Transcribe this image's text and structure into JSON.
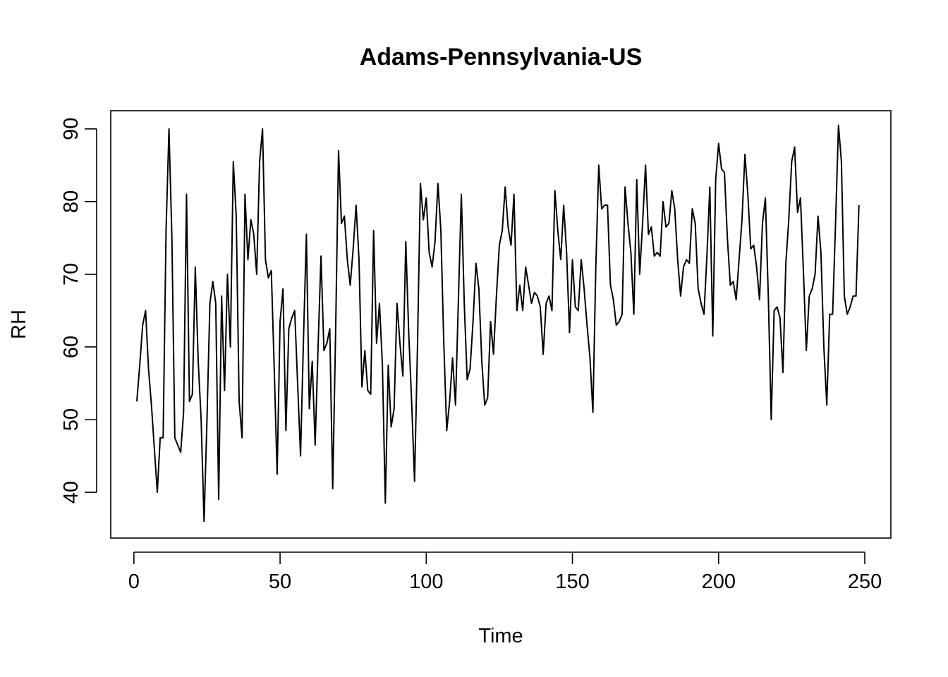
{
  "chart_data": {
    "type": "line",
    "title": "Adams-Pennsylvania-US",
    "xlabel": "Time",
    "ylabel": "RH",
    "xlim": [
      -7.92,
      258.92
    ],
    "ylim": [
      33.7,
      92.5
    ],
    "x_ticks": [
      0,
      50,
      100,
      150,
      200,
      250
    ],
    "y_ticks": [
      40,
      50,
      60,
      70,
      80,
      90
    ],
    "grid": false,
    "legend": "none",
    "line_color": "#000000",
    "x_start": 1,
    "series": [
      {
        "values": [
          52.5,
          57.5,
          63.0,
          65.0,
          57.0,
          52.0,
          46.0,
          40.0,
          47.5,
          47.5,
          76.0,
          90.0,
          75.0,
          47.5,
          46.5,
          45.5,
          51.0,
          81.0,
          52.5,
          53.5,
          71.0,
          58.0,
          50.0,
          36.0,
          50.0,
          66.0,
          69.0,
          66.0,
          39.0,
          67.0,
          54.0,
          70.0,
          60.0,
          85.5,
          78.0,
          52.5,
          47.5,
          81.0,
          72.0,
          77.5,
          75.5,
          70.0,
          85.5,
          90.0,
          72.0,
          69.5,
          70.5,
          57.0,
          42.5,
          63.5,
          68.0,
          48.5,
          62.5,
          64.0,
          65.0,
          55.0,
          45.0,
          61.0,
          75.5,
          51.5,
          58.0,
          46.5,
          60.0,
          72.5,
          59.5,
          60.5,
          62.5,
          40.5,
          62.0,
          87.0,
          77.0,
          78.0,
          72.0,
          68.5,
          73.5,
          79.5,
          72.0,
          54.5,
          59.5,
          54.0,
          53.5,
          76.0,
          60.5,
          66.0,
          57.5,
          38.5,
          57.5,
          49.0,
          51.5,
          66.0,
          60.5,
          56.0,
          74.5,
          62.0,
          52.5,
          41.5,
          60.0,
          82.5,
          77.5,
          80.5,
          73.0,
          71.0,
          74.5,
          82.5,
          76.0,
          60.5,
          48.5,
          52.5,
          58.5,
          52.0,
          66.5,
          81.0,
          66.0,
          55.5,
          57.0,
          63.5,
          71.5,
          68.0,
          58.0,
          52.0,
          53.0,
          63.5,
          59.0,
          67.0,
          74.0,
          76.0,
          82.0,
          76.5,
          74.0,
          81.0,
          65.0,
          68.5,
          65.0,
          71.0,
          68.5,
          66.0,
          67.5,
          67.0,
          65.5,
          59.0,
          66.0,
          67.0,
          65.0,
          81.5,
          76.0,
          72.0,
          79.5,
          73.0,
          62.0,
          72.0,
          65.5,
          65.0,
          72.0,
          68.0,
          63.0,
          58.5,
          51.0,
          71.0,
          85.0,
          79.0,
          79.5,
          79.5,
          68.5,
          66.5,
          63.0,
          63.5,
          64.5,
          82.0,
          77.0,
          73.0,
          64.5,
          83.0,
          70.0,
          77.0,
          85.0,
          75.5,
          76.5,
          72.5,
          73.0,
          72.5,
          80.0,
          76.5,
          77.0,
          81.5,
          79.0,
          72.0,
          67.0,
          71.0,
          72.0,
          71.5,
          79.0,
          77.0,
          68.0,
          66.0,
          64.5,
          72.5,
          82.0,
          61.5,
          83.0,
          88.0,
          84.5,
          84.0,
          75.0,
          68.5,
          69.0,
          66.5,
          72.0,
          77.5,
          86.5,
          81.0,
          73.5,
          74.0,
          71.0,
          66.5,
          77.0,
          80.5,
          67.0,
          50.0,
          65.0,
          65.5,
          64.0,
          56.5,
          71.5,
          77.5,
          85.5,
          87.5,
          78.5,
          80.5,
          70.5,
          59.5,
          67.0,
          68.0,
          70.0,
          78.0,
          73.0,
          60.0,
          52.0,
          64.5,
          64.5,
          77.0,
          90.5,
          85.5,
          67.0,
          64.5,
          65.5,
          67.0,
          67.0,
          79.5
        ]
      }
    ]
  }
}
